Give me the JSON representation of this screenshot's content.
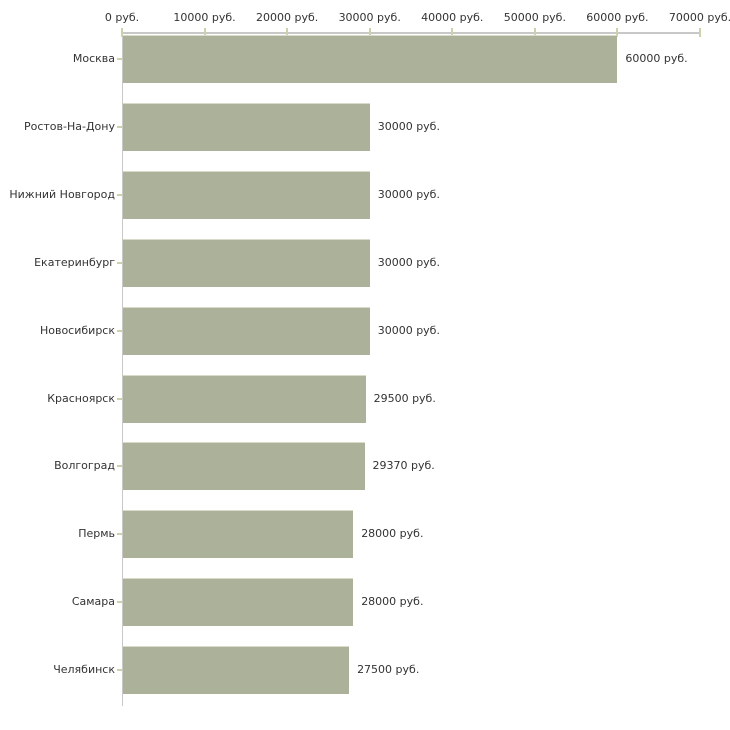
{
  "chart_data": {
    "type": "bar",
    "orientation": "horizontal",
    "title": "",
    "xlabel": "",
    "ylabel": "",
    "grid": false,
    "legend": false,
    "categories": [
      "Москва",
      "Ростов-На-Дону",
      "Нижний Новгород",
      "Екатеринбург",
      "Новосибирск",
      "Красноярск",
      "Волгоград",
      "Пермь",
      "Самара",
      "Челябинск"
    ],
    "values": [
      60000,
      30000,
      30000,
      30000,
      30000,
      29500,
      29370,
      28000,
      28000,
      27500
    ],
    "value_labels": [
      "60000 руб.",
      "30000 руб.",
      "30000 руб.",
      "30000 руб.",
      "30000 руб.",
      "29500 руб.",
      "29370 руб.",
      "28000 руб.",
      "28000 руб.",
      "27500 руб."
    ],
    "x_axis": {
      "position": "top",
      "min": 0,
      "max": 70000,
      "ticks": [
        0,
        10000,
        20000,
        30000,
        40000,
        50000,
        60000,
        70000
      ],
      "tick_labels": [
        "0 руб.",
        "10000 руб.",
        "20000 руб.",
        "30000 руб.",
        "40000 руб.",
        "50000 руб.",
        "60000 руб.",
        "70000 руб."
      ]
    },
    "colors": {
      "bar_fill": "#acb299",
      "bar_highlight": "#d8dbc8",
      "axis_line": "#c8c8c8",
      "tick": "#cdd2ac",
      "text": "#333333",
      "background": "#ffffff"
    }
  }
}
